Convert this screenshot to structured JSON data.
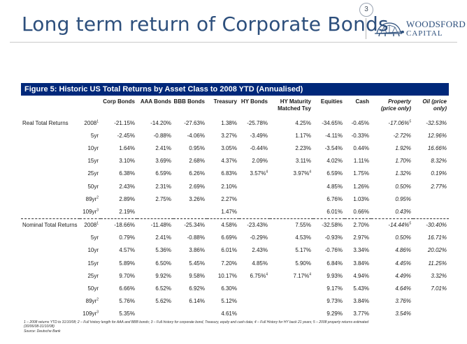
{
  "slide": {
    "title": "Long term return of Corporate Bonds",
    "page_number": "3"
  },
  "logo": {
    "line1": "WOODSFORD",
    "line2": "CAPITAL"
  },
  "figure": {
    "title": "Figure 5: Historic US Total Returns by Asset Class to 2008 YTD (Annualised)",
    "columns": [
      [
        "Corp Bonds"
      ],
      [
        "AAA Bonds"
      ],
      [
        "BBB Bonds"
      ],
      [
        "Treasury"
      ],
      [
        "HY Bonds"
      ],
      [
        "HY Maturity",
        "Matched Tsy"
      ],
      [
        "Equities"
      ],
      [
        "Cash"
      ],
      [
        "Property",
        "(price only)"
      ],
      [
        "Oil (price",
        "only)"
      ]
    ],
    "groups": [
      {
        "label": "Real Total Returns",
        "rows": [
          {
            "period": "2008",
            "sup": "1",
            "values": [
              "-21.15%",
              "-14.20%",
              "-27.63%",
              "1.38%",
              "-25.78%",
              "4.25%",
              "-34.65%",
              "-0.45%",
              "-17.06%",
              "-32.53%"
            ],
            "value_sups": [
              "",
              "",
              "",
              "",
              "",
              "",
              "",
              "",
              "5",
              ""
            ]
          },
          {
            "period": "5yr",
            "sup": "",
            "values": [
              "-2.45%",
              "-0.88%",
              "-4.06%",
              "3.27%",
              "-3.49%",
              "1.17%",
              "-4.11%",
              "-0.33%",
              "-2.72%",
              "12.96%"
            ],
            "value_sups": [
              "",
              "",
              "",
              "",
              "",
              "",
              "",
              "",
              "",
              ""
            ]
          },
          {
            "period": "10yr",
            "sup": "",
            "values": [
              "1.64%",
              "2.41%",
              "0.95%",
              "3.05%",
              "-0.44%",
              "2.23%",
              "-3.54%",
              "0.44%",
              "1.92%",
              "16.66%"
            ],
            "value_sups": [
              "",
              "",
              "",
              "",
              "",
              "",
              "",
              "",
              "",
              ""
            ]
          },
          {
            "period": "15yr",
            "sup": "",
            "values": [
              "3.10%",
              "3.69%",
              "2.68%",
              "4.37%",
              "2.09%",
              "3.11%",
              "4.02%",
              "1.11%",
              "1.70%",
              "8.32%"
            ],
            "value_sups": [
              "",
              "",
              "",
              "",
              "",
              "",
              "",
              "",
              "",
              ""
            ]
          },
          {
            "period": "25yr",
            "sup": "",
            "values": [
              "6.38%",
              "6.59%",
              "6.26%",
              "6.83%",
              "3.57%",
              "3.97%",
              "6.59%",
              "1.75%",
              "1.32%",
              "0.19%"
            ],
            "value_sups": [
              "",
              "",
              "",
              "",
              "4",
              "4",
              "",
              "",
              "",
              ""
            ]
          },
          {
            "period": "50yr",
            "sup": "",
            "values": [
              "2.43%",
              "2.31%",
              "2.69%",
              "2.10%",
              "",
              "",
              "4.85%",
              "1.26%",
              "0.50%",
              "2.77%"
            ],
            "value_sups": [
              "",
              "",
              "",
              "",
              "",
              "",
              "",
              "",
              "",
              ""
            ]
          },
          {
            "period": "89yr",
            "sup": "2",
            "values": [
              "2.89%",
              "2.75%",
              "3.26%",
              "2.27%",
              "",
              "",
              "6.76%",
              "1.03%",
              "0.95%",
              ""
            ],
            "value_sups": [
              "",
              "",
              "",
              "",
              "",
              "",
              "",
              "",
              "",
              ""
            ]
          },
          {
            "period": "109yr",
            "sup": "3",
            "values": [
              "2.19%",
              "",
              "",
              "1.47%",
              "",
              "",
              "6.01%",
              "0.66%",
              "0.43%",
              ""
            ],
            "value_sups": [
              "",
              "",
              "",
              "",
              "",
              "",
              "",
              "",
              "",
              ""
            ]
          }
        ]
      },
      {
        "label": "Nominal Total Returns",
        "rows": [
          {
            "period": "2008",
            "sup": "1",
            "values": [
              "-18.66%",
              "-11.48%",
              "-25.34%",
              "4.58%",
              "-23.43%",
              "7.55%",
              "-32.58%",
              "2.70%",
              "-14.44%",
              "-30.40%"
            ],
            "value_sups": [
              "",
              "",
              "",
              "",
              "",
              "",
              "",
              "",
              "5",
              ""
            ]
          },
          {
            "period": "5yr",
            "sup": "",
            "values": [
              "0.79%",
              "2.41%",
              "-0.88%",
              "6.69%",
              "-0.29%",
              "4.53%",
              "-0.93%",
              "2.97%",
              "0.50%",
              "16.71%"
            ],
            "value_sups": [
              "",
              "",
              "",
              "",
              "",
              "",
              "",
              "",
              "",
              ""
            ]
          },
          {
            "period": "10yr",
            "sup": "",
            "values": [
              "4.57%",
              "5.36%",
              "3.86%",
              "6.01%",
              "2.43%",
              "5.17%",
              "-0.76%",
              "3.34%",
              "4.86%",
              "20.02%"
            ],
            "value_sups": [
              "",
              "",
              "",
              "",
              "",
              "",
              "",
              "",
              "",
              ""
            ]
          },
          {
            "period": "15yr",
            "sup": "",
            "values": [
              "5.89%",
              "6.50%",
              "5.45%",
              "7.20%",
              "4.85%",
              "5.90%",
              "6.84%",
              "3.84%",
              "4.45%",
              "11.25%"
            ],
            "value_sups": [
              "",
              "",
              "",
              "",
              "",
              "",
              "",
              "",
              "",
              ""
            ]
          },
          {
            "period": "25yr",
            "sup": "",
            "values": [
              "9.70%",
              "9.92%",
              "9.58%",
              "10.17%",
              "6.75%",
              "7.17%",
              "9.93%",
              "4.94%",
              "4.49%",
              "3.32%"
            ],
            "value_sups": [
              "",
              "",
              "",
              "",
              "4",
              "4",
              "",
              "",
              "",
              ""
            ]
          },
          {
            "period": "50yr",
            "sup": "",
            "values": [
              "6.66%",
              "6.52%",
              "6.92%",
              "6.30%",
              "",
              "",
              "9.17%",
              "5.43%",
              "4.64%",
              "7.01%"
            ],
            "value_sups": [
              "",
              "",
              "",
              "",
              "",
              "",
              "",
              "",
              "",
              ""
            ]
          },
          {
            "period": "89yr",
            "sup": "2",
            "values": [
              "5.76%",
              "5.62%",
              "6.14%",
              "5.12%",
              "",
              "",
              "9.73%",
              "3.84%",
              "3.76%",
              ""
            ],
            "value_sups": [
              "",
              "",
              "",
              "",
              "",
              "",
              "",
              "",
              "",
              ""
            ]
          },
          {
            "period": "109yr",
            "sup": "3",
            "values": [
              "5.35%",
              "",
              "",
              "4.61%",
              "",
              "",
              "9.29%",
              "3.77%",
              "3.54%",
              ""
            ],
            "value_sups": [
              "",
              "",
              "",
              "",
              "",
              "",
              "",
              "",
              "",
              ""
            ]
          }
        ]
      }
    ],
    "footnote": [
      "1 – 2008 returns YTD to 31/10/08; 2 – Full history length for AAA and BBB bonds; 3 – Full history for corporate bond, Treasury, equity and cash data; 4 – Full History for HY back 21 years; 5 – 2008 property returns estimated",
      "(30/06/08-31/10/08)",
      "Source: Deutsche Bank"
    ]
  },
  "colors": {
    "title": "#2d4f7c",
    "figure_header_bg": "#00287a"
  }
}
